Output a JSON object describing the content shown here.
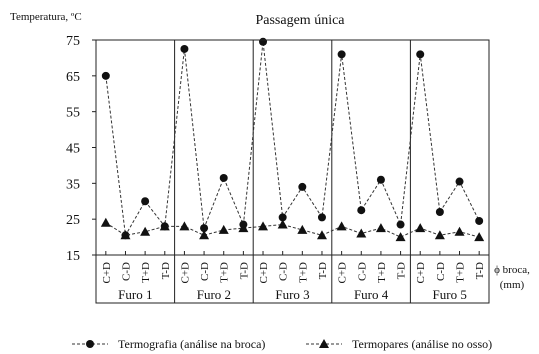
{
  "chart_data": {
    "type": "line",
    "title": "Passagem única",
    "ylabel": "Temperatura, ºC",
    "xlabel_line1": "ϕ broca,",
    "xlabel_line2": "(mm)",
    "ylim": [
      15,
      75
    ],
    "yticks": [
      15,
      25,
      35,
      45,
      55,
      65,
      75
    ],
    "grid": false,
    "legend_position": "bottom",
    "groups": [
      {
        "label": "Furo 1",
        "categories": [
          "C+D",
          "C-D",
          "T+D",
          "T-D"
        ]
      },
      {
        "label": "Furo 2",
        "categories": [
          "C+D",
          "C-D",
          "T+D",
          "T-D"
        ]
      },
      {
        "label": "Furo 3",
        "categories": [
          "C+D",
          "C-D",
          "T+D",
          "T-D"
        ]
      },
      {
        "label": "Furo 4",
        "categories": [
          "C+D",
          "C-D",
          "T+D",
          "T-D"
        ]
      },
      {
        "label": "Furo 5",
        "categories": [
          "C+D",
          "C-D",
          "T+D",
          "T-D"
        ]
      }
    ],
    "series": [
      {
        "name": "Termografia (análise na broca)",
        "marker": "circle",
        "line": "dashed",
        "values": [
          65,
          20.5,
          30,
          23,
          72.5,
          22.5,
          36.5,
          23.5,
          74.5,
          25.5,
          34,
          25.5,
          71,
          27.5,
          36,
          23.5,
          71,
          27,
          35.5,
          24.5
        ]
      },
      {
        "name": "Termopares (análise no osso)",
        "marker": "triangle",
        "line": "dashed",
        "values": [
          24,
          20.5,
          21.5,
          23,
          23,
          20.5,
          22,
          22.5,
          23,
          23.5,
          22,
          20.5,
          23,
          21,
          22.5,
          20,
          22.5,
          20.5,
          21.5,
          20
        ]
      }
    ]
  }
}
